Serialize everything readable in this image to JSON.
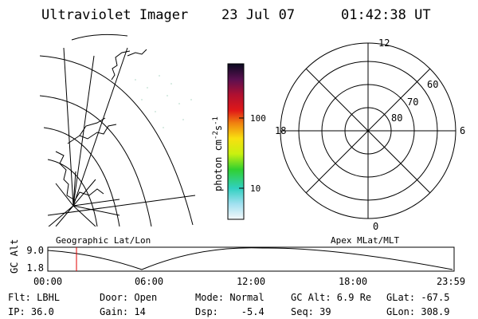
{
  "header": {
    "title": "Ultraviolet Imager",
    "date": "23 Jul 07",
    "time": "01:42:38 UT"
  },
  "colorbar": {
    "label": "photon cm",
    "exp1": "-2",
    "unit2": "s",
    "exp2": "-1",
    "ticks": [
      "100",
      "10"
    ]
  },
  "polar": {
    "mlt_labels": [
      "12",
      "6",
      "0",
      "18"
    ],
    "lat_labels": [
      "60",
      "70",
      "80"
    ]
  },
  "altitude_plot": {
    "ylabel": "GC Alt",
    "left_label": "Geographic Lat/Lon",
    "right_label": "Apex MLat/MLT",
    "yticks": [
      "9.0",
      "1.8"
    ],
    "xticks": [
      "00:00",
      "06:00",
      "12:00",
      "18:00",
      "23:59"
    ]
  },
  "info": {
    "rows": [
      [
        "Flt: LBHL",
        "Door: Open",
        "Mode: Normal",
        "GC Alt: 6.9 Re",
        "GLat: -67.5"
      ],
      [
        "IP: 36.0",
        "Gain: 14",
        "Dsp:    -5.4",
        "Seq: 39",
        "GLon: 308.9"
      ]
    ]
  }
}
